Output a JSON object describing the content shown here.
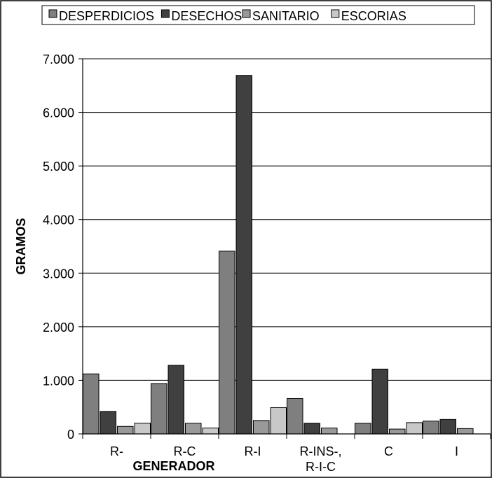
{
  "chart_data": {
    "type": "bar",
    "categories": [
      "R-",
      "R-C",
      "R-I",
      "R-INS-,\nR-I-C",
      "C",
      "I"
    ],
    "series": [
      {
        "name": "DESPERDICIOS",
        "color": "#7f7f7f",
        "values": [
          1120,
          940,
          3410,
          660,
          200,
          240
        ]
      },
      {
        "name": "DESECHOS",
        "color": "#404040",
        "values": [
          420,
          1280,
          6690,
          200,
          1210,
          270
        ]
      },
      {
        "name": "SANITARIO",
        "color": "#999999",
        "values": [
          140,
          200,
          250,
          110,
          90,
          100
        ]
      },
      {
        "name": "ESCORIAS",
        "color": "#c8c8c8",
        "values": [
          200,
          110,
          490,
          0,
          210,
          0
        ]
      }
    ],
    "ylim": [
      0,
      7000
    ],
    "yticks": [
      "0",
      "1.000",
      "2.000",
      "3.000",
      "4.000",
      "5.000",
      "6.000",
      "7.000"
    ],
    "xlabel": "GENERADOR",
    "ylabel": "GRAMOS",
    "legend": "top",
    "grid": true
  }
}
